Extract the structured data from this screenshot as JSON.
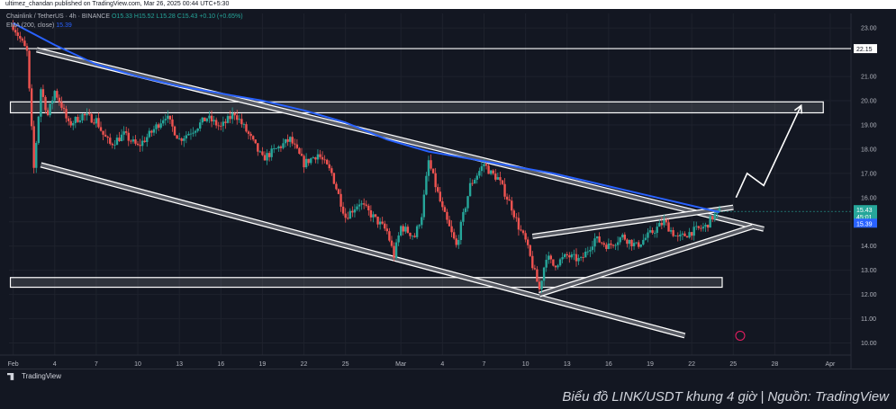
{
  "header": {
    "publisher_line": "ultimez_chandan published on TradingView.com, Mar 26, 2025 00:44 UTC+5:30"
  },
  "legend": {
    "symbol": "Chainlink / TetherUS · 4h · BINANCE",
    "ohlc": "O15.33 H15.52 L15.28 C15.43 +0.10 (+0.65%)",
    "ema_label": "EMA (200, close)",
    "ema_value": "15.39"
  },
  "footer": {
    "brand": "TradingView",
    "caption": "Biểu đồ LINK/USDT khung 4 giờ | Nguồn: TradingView"
  },
  "chart_data": {
    "type": "line",
    "y_ticks": [
      10,
      11,
      12,
      13,
      14,
      15,
      16,
      17,
      18,
      19,
      20,
      21,
      23
    ],
    "y_tick_labels": [
      "10.00",
      "11.00",
      "12.00",
      "13.00",
      "14.00",
      "15.00",
      "16.00",
      "17.00",
      "18.00",
      "19.00",
      "20.00",
      "21.00",
      "23.00"
    ],
    "ylim": [
      9.5,
      23.6
    ],
    "x_ticks": [
      {
        "label": "Feb",
        "x": 0
      },
      {
        "label": "4",
        "x": 3
      },
      {
        "label": "7",
        "x": 6
      },
      {
        "label": "10",
        "x": 9
      },
      {
        "label": "13",
        "x": 12
      },
      {
        "label": "16",
        "x": 15
      },
      {
        "label": "19",
        "x": 18
      },
      {
        "label": "22",
        "x": 21
      },
      {
        "label": "25",
        "x": 24
      },
      {
        "label": "Mar",
        "x": 28
      },
      {
        "label": "4",
        "x": 31
      },
      {
        "label": "7",
        "x": 34
      },
      {
        "label": "10",
        "x": 37
      },
      {
        "label": "13",
        "x": 40
      },
      {
        "label": "16",
        "x": 43
      },
      {
        "label": "19",
        "x": 46
      },
      {
        "label": "22",
        "x": 49
      },
      {
        "label": "25",
        "x": 52
      },
      {
        "label": "28",
        "x": 55
      },
      {
        "label": "Apr",
        "x": 59
      }
    ],
    "xlim": [
      -0.3,
      60.5
    ],
    "price": [
      [
        0,
        23.1
      ],
      [
        1,
        22.0
      ],
      [
        1.5,
        17.2
      ],
      [
        2,
        20.5
      ],
      [
        2.5,
        19.4
      ],
      [
        3,
        20.4
      ],
      [
        3.5,
        19.8
      ],
      [
        4,
        19.0
      ],
      [
        5,
        19.4
      ],
      [
        6,
        19.2
      ],
      [
        6.5,
        18.6
      ],
      [
        7,
        18.2
      ],
      [
        8,
        18.6
      ],
      [
        9,
        18.1
      ],
      [
        10,
        18.7
      ],
      [
        11,
        19.4
      ],
      [
        12,
        18.4
      ],
      [
        13,
        18.8
      ],
      [
        14,
        19.3
      ],
      [
        15,
        18.9
      ],
      [
        16,
        19.5
      ],
      [
        17,
        18.6
      ],
      [
        18,
        17.6
      ],
      [
        19,
        18.0
      ],
      [
        20,
        18.4
      ],
      [
        21,
        17.4
      ],
      [
        22,
        17.8
      ],
      [
        23,
        17.0
      ],
      [
        24,
        15.2
      ],
      [
        25,
        15.8
      ],
      [
        26,
        15.2
      ],
      [
        27,
        14.6
      ],
      [
        27.5,
        13.6
      ],
      [
        28,
        14.8
      ],
      [
        29,
        14.4
      ],
      [
        29.5,
        15.3
      ],
      [
        30,
        17.5
      ],
      [
        31,
        15.5
      ],
      [
        32,
        14.0
      ],
      [
        33,
        16.5
      ],
      [
        34,
        17.4
      ],
      [
        34.5,
        17.0
      ],
      [
        35,
        16.8
      ],
      [
        36,
        15.6
      ],
      [
        36.5,
        14.8
      ],
      [
        37,
        14.2
      ],
      [
        37.5,
        13.2
      ],
      [
        38,
        12.2
      ],
      [
        38.5,
        13.6
      ],
      [
        39,
        13.2
      ],
      [
        40,
        13.6
      ],
      [
        41,
        13.4
      ],
      [
        42,
        14.3
      ],
      [
        43,
        14.0
      ],
      [
        44,
        14.4
      ],
      [
        45,
        14.0
      ],
      [
        46,
        14.5
      ],
      [
        47,
        15.0
      ],
      [
        48,
        14.3
      ],
      [
        49,
        14.6
      ],
      [
        50,
        14.8
      ],
      [
        50.5,
        15.2
      ],
      [
        51,
        15.43
      ]
    ],
    "price_label": "15.43",
    "countdown_label": "45:01",
    "ema_series": [
      [
        0,
        23.2
      ],
      [
        3,
        22.3
      ],
      [
        6,
        21.5
      ],
      [
        9,
        21.0
      ],
      [
        12,
        20.6
      ],
      [
        15,
        20.3
      ],
      [
        18,
        20.0
      ],
      [
        21,
        19.6
      ],
      [
        24,
        19.1
      ],
      [
        27,
        18.4
      ],
      [
        30,
        17.9
      ],
      [
        33,
        17.6
      ],
      [
        36,
        17.3
      ],
      [
        39,
        17.0
      ],
      [
        42,
        16.6
      ],
      [
        45,
        16.2
      ],
      [
        48,
        15.8
      ],
      [
        51,
        15.4
      ]
    ],
    "ema_label_value": "15.39",
    "horizontal_levels": [
      {
        "y": 22.15,
        "label": "22.15"
      }
    ],
    "zones": [
      {
        "name": "resistance-zone",
        "y_top": 19.95,
        "y_bottom": 19.5,
        "x_start": -0.2,
        "x_end": 58.5
      },
      {
        "name": "support-zone",
        "y_top": 12.7,
        "y_bottom": 12.3,
        "x_start": -0.2,
        "x_end": 51.2
      }
    ],
    "channel_lines": [
      {
        "name": "descending-upper",
        "x1": 1.7,
        "y1": 22.1,
        "x2": 54.2,
        "y2": 14.7
      },
      {
        "name": "descending-lower",
        "x1": 2.0,
        "y1": 17.35,
        "x2": 48.5,
        "y2": 10.3
      },
      {
        "name": "wedge-upper",
        "x1": 37.5,
        "y1": 14.4,
        "x2": 52.0,
        "y2": 15.6
      },
      {
        "name": "wedge-lower",
        "x1": 38.0,
        "y1": 12.0,
        "x2": 53.4,
        "y2": 14.8
      }
    ],
    "projection": [
      [
        52.2,
        16.0
      ],
      [
        53.0,
        17.0
      ],
      [
        54.2,
        16.5
      ],
      [
        56.9,
        19.8
      ]
    ]
  }
}
